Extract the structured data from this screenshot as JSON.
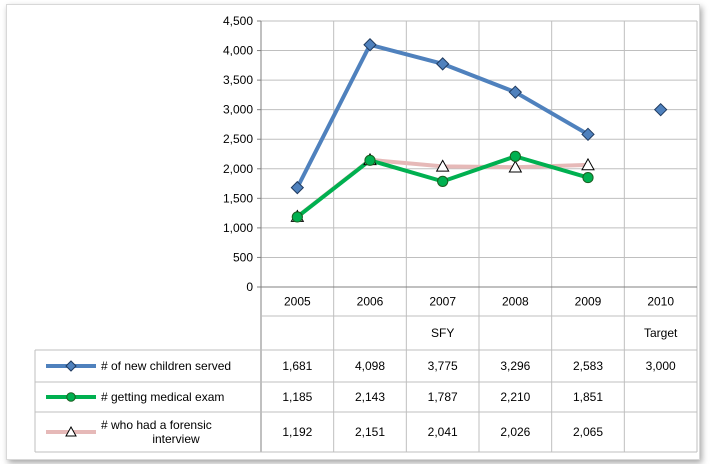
{
  "chart_data": {
    "type": "line",
    "categories": [
      "2005",
      "2006",
      "2007",
      "2008",
      "2009",
      "2010"
    ],
    "group_labels": [
      {
        "label": "SFY",
        "span": [
          0,
          4
        ]
      },
      {
        "label": "Target",
        "span": [
          5,
          5
        ]
      }
    ],
    "ylim": [
      0,
      4500
    ],
    "yticks": [
      "0",
      "500",
      "1,000",
      "1,500",
      "2,000",
      "2,500",
      "3,000",
      "3,500",
      "4,000",
      "4,500"
    ],
    "grid": true,
    "legend": "data-table-rows",
    "series": [
      {
        "name": "# of new children served",
        "values": [
          1681,
          4098,
          3775,
          3296,
          2583,
          null
        ],
        "target": 3000,
        "labels": [
          "1,681",
          "4,098",
          "3,775",
          "3,296",
          "2,583",
          "3,000"
        ],
        "color": "#4f81bd",
        "marker": "diamond"
      },
      {
        "name": "# getting medical exam",
        "values": [
          1185,
          2143,
          1787,
          2210,
          1851,
          null
        ],
        "labels": [
          "1,185",
          "2,143",
          "1,787",
          "2,210",
          "1,851",
          ""
        ],
        "color": "#00b050",
        "marker": "circle"
      },
      {
        "name": "# who had a forensic interview",
        "values": [
          1192,
          2151,
          2041,
          2026,
          2065,
          null
        ],
        "labels": [
          "1,192",
          "2,151",
          "2,041",
          "2,026",
          "2,065",
          ""
        ],
        "color": "#e6b9b8",
        "marker": "triangle"
      }
    ]
  }
}
